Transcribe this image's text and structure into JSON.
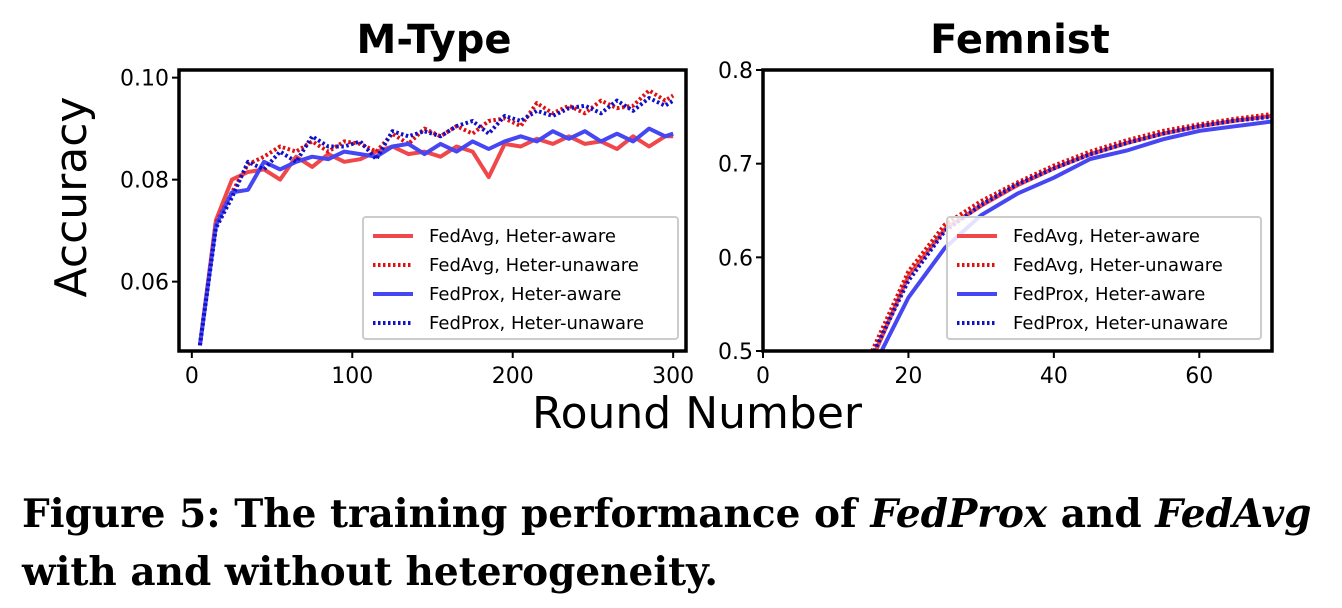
{
  "caption": {
    "label": "Figure 5:",
    "text_1": "The training performance of",
    "emph_1": "FedProx",
    "text_2": "and",
    "emph_2": "FedAvg",
    "text_3": "with and without heterogeneity."
  },
  "shared": {
    "xlabel": "Round Number",
    "ylabel": "Accuracy"
  },
  "colors": {
    "red": "#f0474a",
    "blue": "#4646f2",
    "red_dotted": "#e01010",
    "blue_dotted": "#1010c8"
  },
  "chart_data": [
    {
      "type": "line",
      "title": "M-Type",
      "xlabel": "Round Number",
      "ylabel": "Accuracy",
      "xlim": [
        -8,
        308
      ],
      "ylim": [
        0.0464,
        0.1015
      ],
      "xticks": [
        0,
        100,
        200,
        300
      ],
      "yticks": [
        0.06,
        0.08,
        0.1
      ],
      "ytick_labels": [
        "0.06",
        "0.08",
        "0.10"
      ],
      "legend_position": "lower-right",
      "series": [
        {
          "name": "FedAvg, Heter-aware",
          "style": "solid",
          "color": "#f0474a",
          "x": [
            5,
            15,
            25,
            35,
            45,
            55,
            65,
            75,
            85,
            95,
            105,
            115,
            125,
            135,
            145,
            155,
            165,
            175,
            185,
            195,
            205,
            215,
            225,
            235,
            245,
            255,
            265,
            275,
            285,
            295,
            300
          ],
          "y": [
            0.0475,
            0.072,
            0.08,
            0.0815,
            0.082,
            0.08,
            0.0845,
            0.0825,
            0.085,
            0.0835,
            0.084,
            0.0855,
            0.0865,
            0.085,
            0.0855,
            0.0845,
            0.0865,
            0.0855,
            0.0805,
            0.087,
            0.0865,
            0.088,
            0.087,
            0.0885,
            0.087,
            0.0875,
            0.086,
            0.0885,
            0.0865,
            0.0885,
            0.0885
          ]
        },
        {
          "name": "FedAvg, Heter-unaware",
          "style": "dotted",
          "color": "#e01010",
          "x": [
            5,
            15,
            25,
            35,
            45,
            55,
            65,
            75,
            85,
            95,
            105,
            115,
            125,
            135,
            145,
            155,
            165,
            175,
            185,
            195,
            205,
            215,
            225,
            235,
            245,
            255,
            265,
            275,
            285,
            295,
            300
          ],
          "y": [
            0.0475,
            0.0715,
            0.0775,
            0.083,
            0.0845,
            0.0865,
            0.0855,
            0.0875,
            0.0855,
            0.0875,
            0.087,
            0.0855,
            0.089,
            0.087,
            0.09,
            0.0885,
            0.0905,
            0.089,
            0.0915,
            0.092,
            0.0905,
            0.095,
            0.093,
            0.0945,
            0.093,
            0.0955,
            0.094,
            0.0945,
            0.0975,
            0.0955,
            0.0965
          ]
        },
        {
          "name": "FedProx, Heter-aware",
          "style": "solid",
          "color": "#4646f2",
          "x": [
            5,
            15,
            25,
            35,
            45,
            55,
            65,
            75,
            85,
            95,
            105,
            115,
            125,
            135,
            145,
            155,
            165,
            175,
            185,
            195,
            205,
            215,
            225,
            235,
            245,
            255,
            265,
            275,
            285,
            295,
            300
          ],
          "y": [
            0.0475,
            0.071,
            0.0775,
            0.078,
            0.0835,
            0.082,
            0.0835,
            0.0845,
            0.084,
            0.0855,
            0.085,
            0.0845,
            0.0865,
            0.087,
            0.085,
            0.087,
            0.0855,
            0.0875,
            0.086,
            0.0875,
            0.0885,
            0.0875,
            0.0895,
            0.088,
            0.0895,
            0.0875,
            0.089,
            0.0875,
            0.09,
            0.0885,
            0.089
          ]
        },
        {
          "name": "FedProx, Heter-unaware",
          "style": "dotted",
          "color": "#1010c8",
          "x": [
            5,
            15,
            25,
            35,
            45,
            55,
            65,
            75,
            85,
            95,
            105,
            115,
            125,
            135,
            145,
            155,
            165,
            175,
            185,
            195,
            205,
            215,
            225,
            235,
            245,
            255,
            265,
            275,
            285,
            295,
            300
          ],
          "y": [
            0.0475,
            0.0705,
            0.0765,
            0.0835,
            0.082,
            0.0855,
            0.0835,
            0.0885,
            0.0865,
            0.0865,
            0.0875,
            0.084,
            0.0895,
            0.0885,
            0.0895,
            0.0885,
            0.0905,
            0.0915,
            0.089,
            0.0925,
            0.0915,
            0.0935,
            0.0925,
            0.094,
            0.0945,
            0.093,
            0.0955,
            0.0935,
            0.096,
            0.0945,
            0.0955
          ]
        }
      ]
    },
    {
      "type": "line",
      "title": "Femnist",
      "xlabel": "Round Number",
      "ylabel": "",
      "xlim": [
        0,
        70
      ],
      "ylim": [
        0.5,
        0.8
      ],
      "xticks": [
        0,
        20,
        40,
        60
      ],
      "yticks": [
        0.5,
        0.6,
        0.7,
        0.8
      ],
      "ytick_labels": [
        "0.5",
        "0.6",
        "0.7",
        "0.8"
      ],
      "legend_position": "lower-right",
      "series": [
        {
          "name": "FedAvg, Heter-aware",
          "style": "solid",
          "color": "#f0474a",
          "x": [
            15.5,
            20,
            25,
            30,
            35,
            40,
            45,
            50,
            55,
            60,
            65,
            70
          ],
          "y": [
            0.5,
            0.58,
            0.63,
            0.655,
            0.677,
            0.695,
            0.71,
            0.722,
            0.732,
            0.74,
            0.746,
            0.751
          ]
        },
        {
          "name": "FedAvg, Heter-unaware",
          "style": "dotted",
          "color": "#e01010",
          "x": [
            15,
            20,
            25,
            30,
            35,
            40,
            45,
            50,
            55,
            60,
            65,
            70
          ],
          "y": [
            0.5,
            0.585,
            0.635,
            0.66,
            0.68,
            0.698,
            0.713,
            0.725,
            0.735,
            0.742,
            0.748,
            0.753
          ]
        },
        {
          "name": "FedProx, Heter-aware",
          "style": "solid",
          "color": "#4646f2",
          "x": [
            16.3,
            20,
            25,
            30,
            35,
            40,
            45,
            50,
            55,
            60,
            65,
            70
          ],
          "y": [
            0.5,
            0.557,
            0.61,
            0.645,
            0.668,
            0.685,
            0.705,
            0.714,
            0.726,
            0.735,
            0.74,
            0.745
          ]
        },
        {
          "name": "FedProx, Heter-unaware",
          "style": "dotted",
          "color": "#1010c8",
          "x": [
            15.3,
            20,
            25,
            30,
            35,
            40,
            45,
            50,
            55,
            60,
            65,
            70
          ],
          "y": [
            0.5,
            0.575,
            0.628,
            0.656,
            0.678,
            0.695,
            0.71,
            0.722,
            0.732,
            0.74,
            0.746,
            0.75
          ]
        }
      ]
    }
  ]
}
